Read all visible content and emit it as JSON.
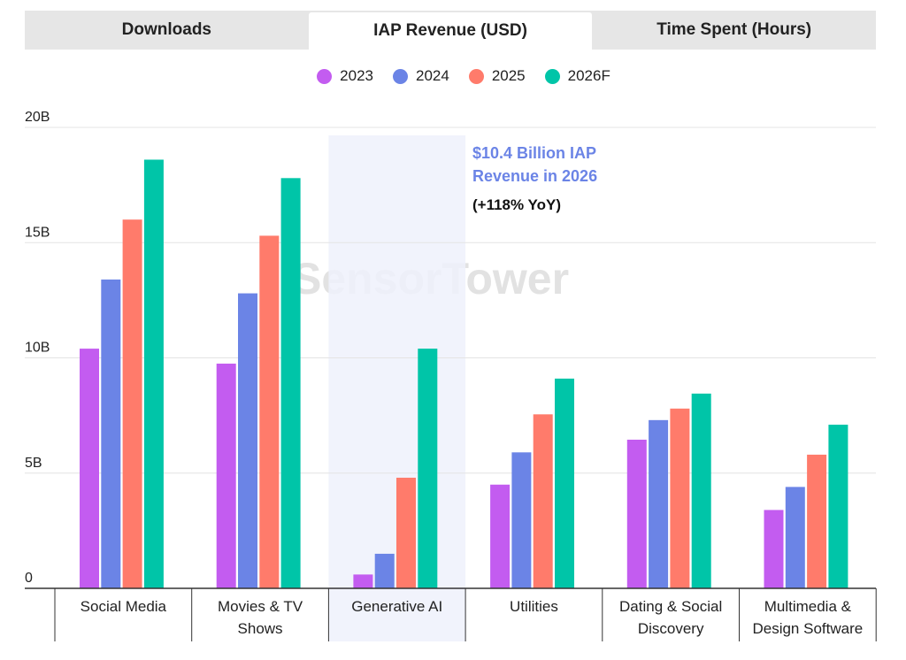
{
  "tabs": [
    {
      "label": "Downloads",
      "active": false
    },
    {
      "label": "IAP Revenue (USD)",
      "active": true
    },
    {
      "label": "Time Spent (Hours)",
      "active": false
    }
  ],
  "watermark": "SensorTower",
  "annotation": {
    "line1": "$10.4 Billion IAP Revenue in 2026",
    "line2": "(+118% YoY)"
  },
  "chart_data": {
    "type": "bar",
    "title": "IAP Revenue (USD)",
    "categories": [
      "Social Media",
      "Movies & TV Shows",
      "Generative AI",
      "Utilities",
      "Dating & Social Discovery",
      "Multimedia & Design Software"
    ],
    "highlight_category": "Generative AI",
    "series": [
      {
        "name": "2023",
        "color": "#C35CF0",
        "values": [
          10.4,
          9.75,
          0.6,
          4.5,
          6.45,
          3.4
        ]
      },
      {
        "name": "2024",
        "color": "#6B84E6",
        "values": [
          13.4,
          12.8,
          1.5,
          5.9,
          7.3,
          4.4
        ]
      },
      {
        "name": "2025",
        "color": "#FF7B6B",
        "values": [
          16.0,
          15.3,
          4.8,
          7.55,
          7.8,
          5.8
        ]
      },
      {
        "name": "2026F",
        "color": "#00C5A8",
        "values": [
          18.6,
          17.8,
          10.4,
          9.1,
          8.45,
          7.1
        ]
      }
    ],
    "y_ticks": [
      {
        "value": 0,
        "label": "0"
      },
      {
        "value": 5,
        "label": "5B"
      },
      {
        "value": 10,
        "label": "10B"
      },
      {
        "value": 15,
        "label": "15B"
      },
      {
        "value": 20,
        "label": "20B"
      }
    ],
    "ylim": [
      0,
      20
    ],
    "ylabel": "",
    "xlabel": "",
    "grid": true,
    "legend": "top-center"
  }
}
